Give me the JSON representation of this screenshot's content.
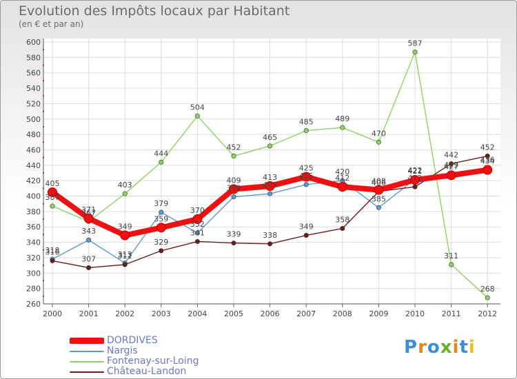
{
  "chart_data": {
    "type": "line",
    "title": "Evolution des Impôts locaux par Habitant",
    "subtitle": "(en € et par an)",
    "xlabel": "",
    "ylabel": "",
    "ylim": [
      260,
      600
    ],
    "yticks": [
      260,
      280,
      300,
      320,
      340,
      360,
      380,
      400,
      420,
      440,
      460,
      480,
      500,
      520,
      540,
      560,
      580,
      600
    ],
    "categories": [
      "2000",
      "2001",
      "2002",
      "2003",
      "2004",
      "2005",
      "2006",
      "2007",
      "2008",
      "2009",
      "2010",
      "2011",
      "2012"
    ],
    "series": [
      {
        "name": "Nargis",
        "color": "#5b9bd5",
        "values": [
          318,
          343,
          313,
          379,
          352,
          399,
          403,
          415,
          420,
          385,
          422,
          429,
          436
        ]
      },
      {
        "name": "Fontenay-sur-Loing",
        "color": "#8dd35f",
        "values": [
          387,
          367,
          403,
          444,
          504,
          452,
          465,
          485,
          489,
          470,
          587,
          311,
          268
        ]
      },
      {
        "name": "Château-Landon",
        "color": "#6b1d1d",
        "values": [
          316,
          307,
          311,
          329,
          341,
          339,
          338,
          349,
          358,
          406,
          412,
          442,
          452
        ]
      },
      {
        "name": "DORDIVES",
        "color": "#ee1111",
        "values": [
          405,
          371,
          349,
          359,
          370,
          409,
          413,
          425,
          412,
          408,
          421,
          427,
          434
        ]
      }
    ],
    "legend_order": [
      "DORDIVES",
      "Nargis",
      "Fontenay-sur-Loing",
      "Château-Landon"
    ],
    "legend_position": "bottom-left"
  },
  "branding": {
    "logo_text": "Proxiti"
  }
}
